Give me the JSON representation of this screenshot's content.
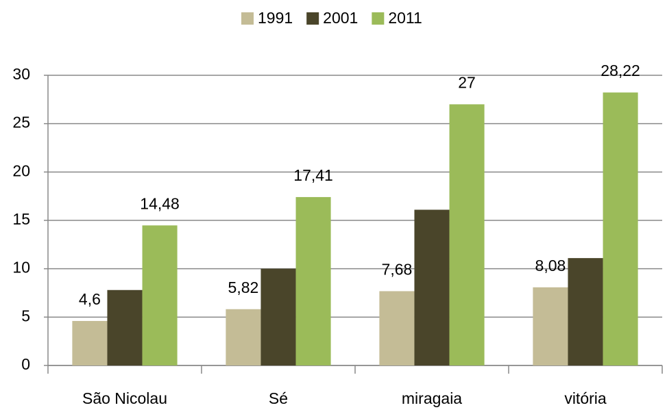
{
  "chart_data": {
    "type": "bar",
    "categories": [
      "São Nicolau",
      "Sé",
      "miragaia",
      "vitória"
    ],
    "series": [
      {
        "name": "1991",
        "color": "#c4bc96",
        "values": [
          4.6,
          5.82,
          7.68,
          8.08
        ],
        "value_labels": [
          "4,6",
          "5,82",
          "7,68",
          "8,08"
        ]
      },
      {
        "name": "2001",
        "color": "#4a452a",
        "values": [
          7.8,
          10,
          16.1,
          11.1
        ]
      },
      {
        "name": "2011",
        "color": "#9bbb59",
        "values": [
          14.48,
          17.41,
          27,
          28.22
        ],
        "value_labels": [
          "14,48",
          "17,41",
          "27",
          "28,22"
        ]
      }
    ],
    "ylim": [
      0,
      30
    ],
    "yticks": [
      0,
      5,
      10,
      15,
      20,
      25,
      30
    ],
    "grid": true,
    "legend": "top"
  }
}
